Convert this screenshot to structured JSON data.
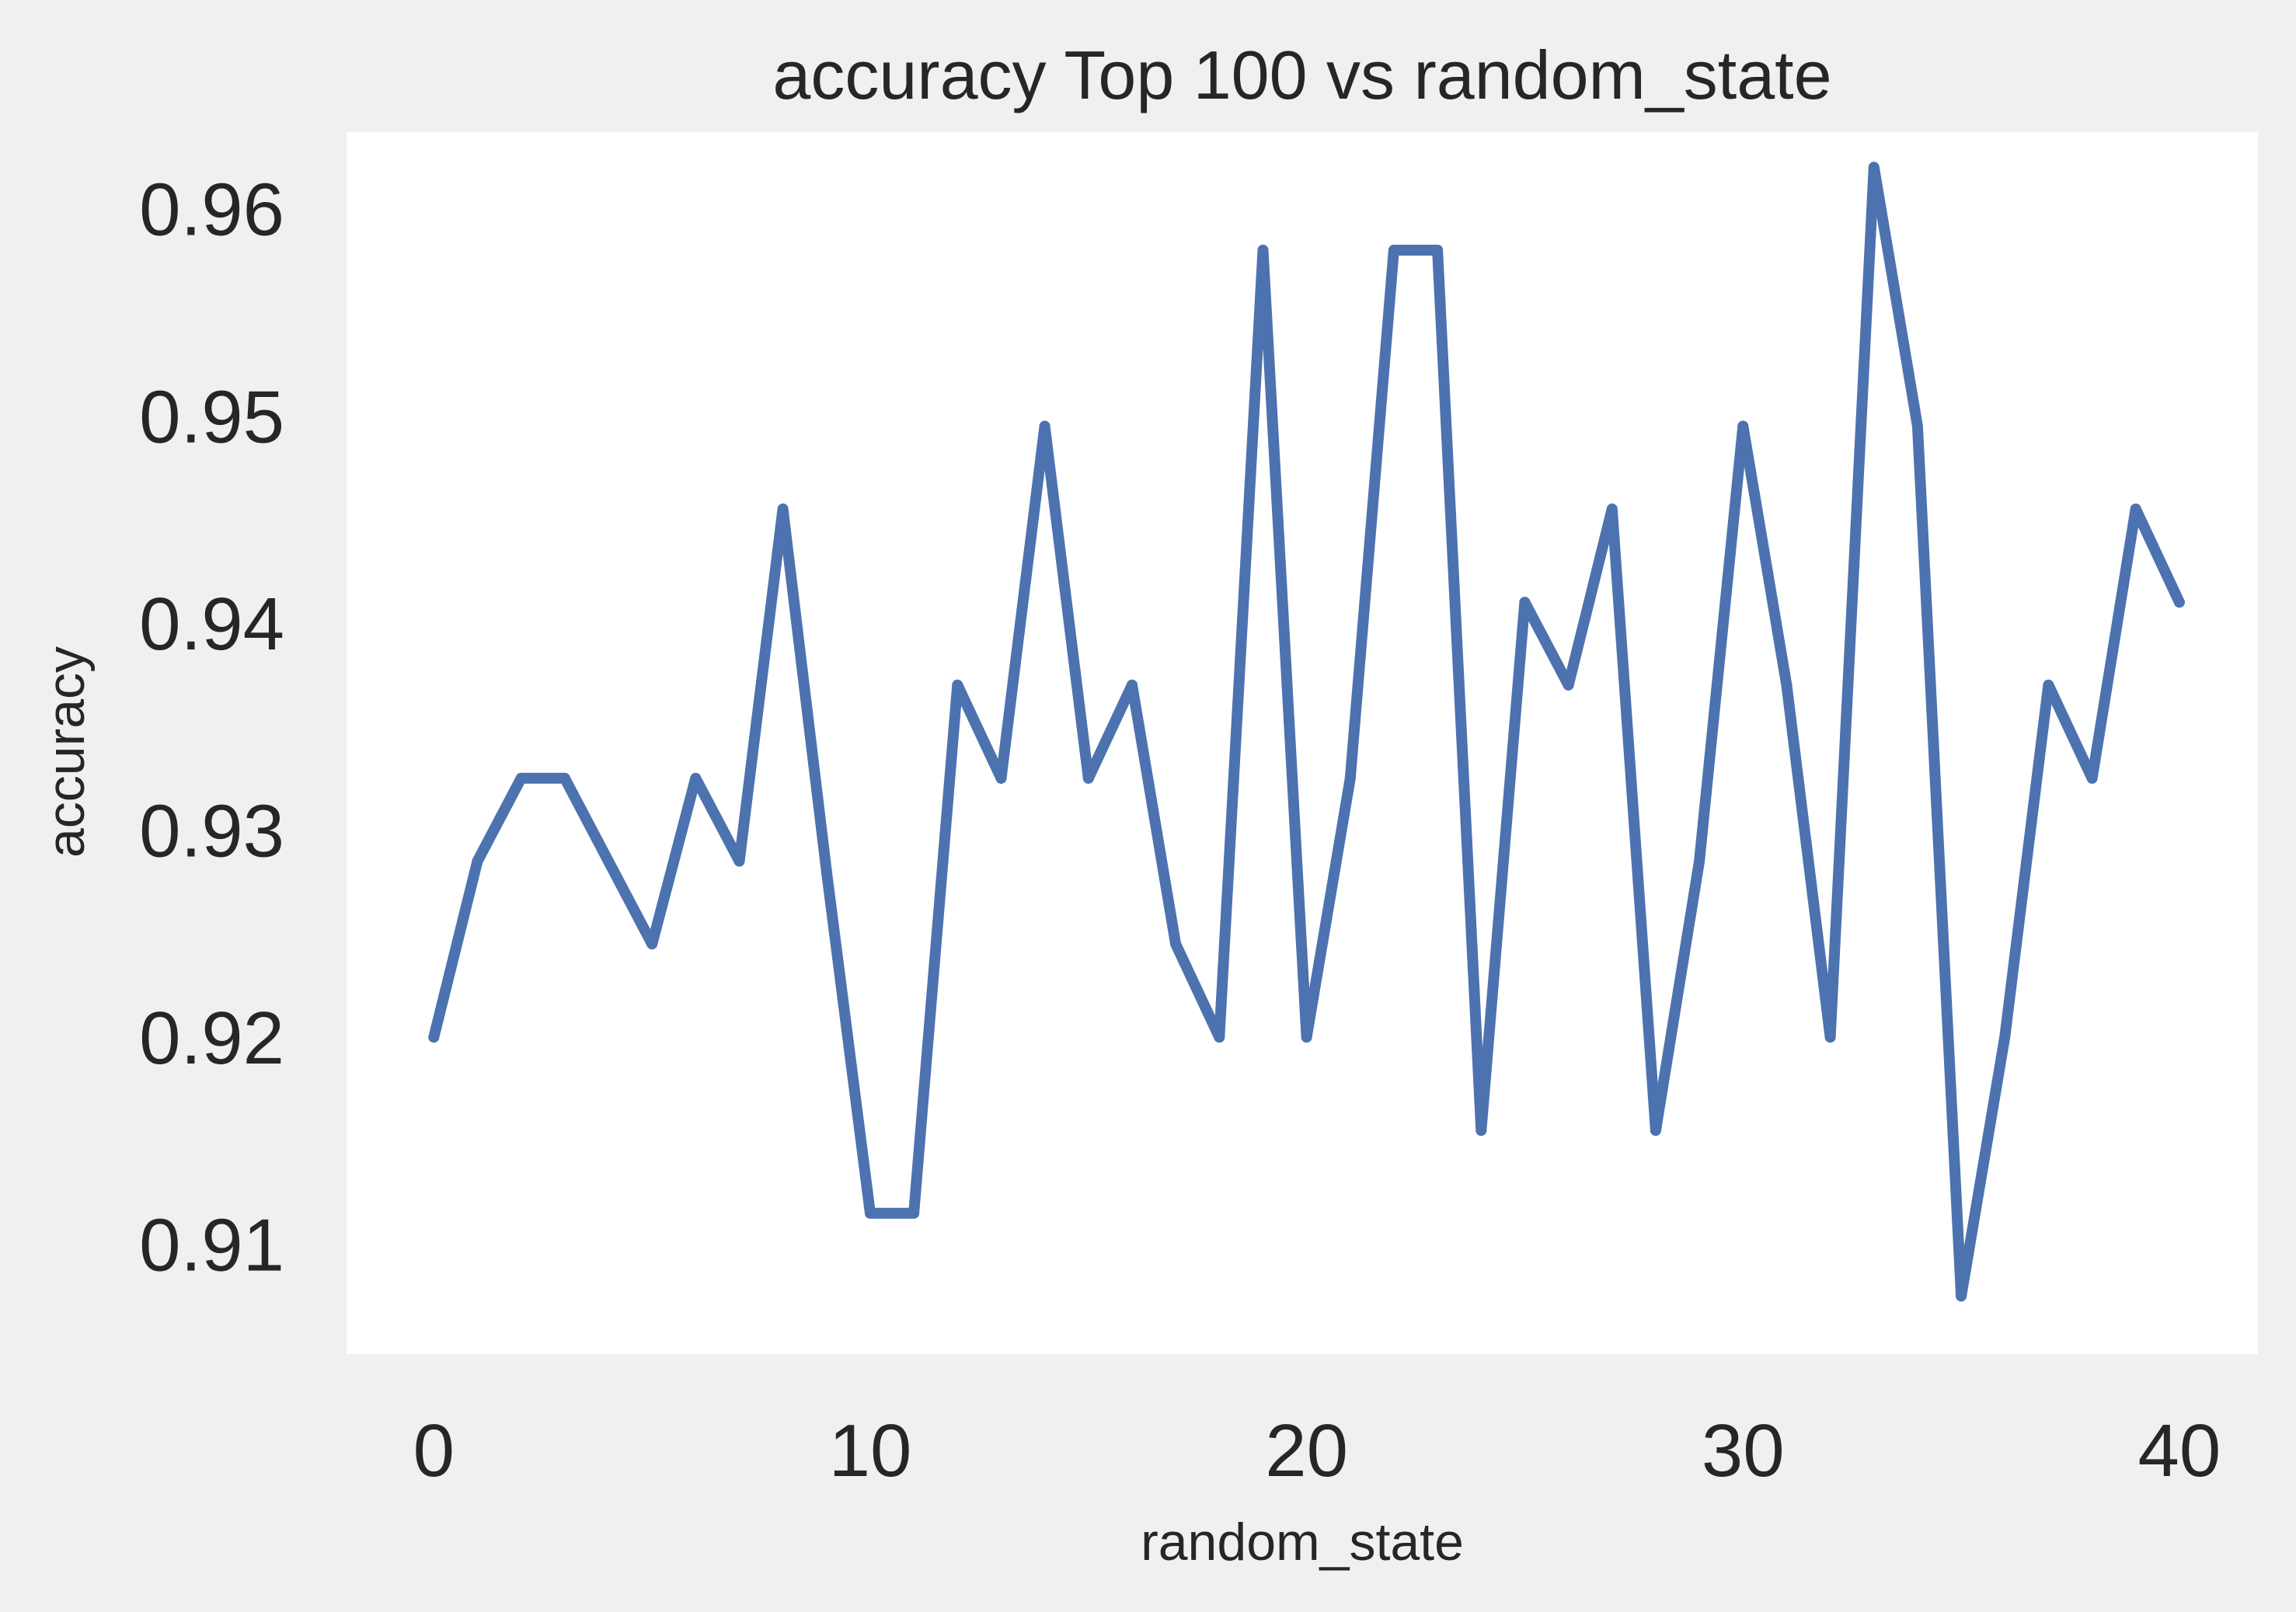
{
  "chart_data": {
    "type": "line",
    "title": "accuracy Top 100 vs random_state",
    "xlabel": "random_state",
    "ylabel": "accuracy",
    "xlim": [
      -2,
      41.8
    ],
    "ylim": [
      0.9047,
      0.9637
    ],
    "xticks": [
      0,
      10,
      20,
      30,
      40
    ],
    "yticks": [
      0.91,
      0.92,
      0.93,
      0.94,
      0.95,
      0.96
    ],
    "ytick_labels": [
      "0.91",
      "0.92",
      "0.93",
      "0.94",
      "0.95",
      "0.96"
    ],
    "grid": false,
    "colors": {
      "line": "#4c72b0",
      "plot_bg": "#ffffff",
      "figure_bg": "#f0f0f0"
    },
    "series": [
      {
        "x": [
          0,
          1,
          2,
          3,
          4,
          5,
          6,
          7,
          8,
          9,
          10,
          11,
          12,
          13,
          14,
          15,
          16,
          17,
          18,
          19,
          20,
          21,
          22,
          23,
          24,
          25,
          26,
          27,
          28,
          29,
          30,
          31,
          32,
          33,
          34,
          35,
          36,
          37,
          38,
          39,
          40
        ],
        "values": [
          0.92,
          0.9285,
          0.9325,
          0.9325,
          0.9285,
          0.9245,
          0.9325,
          0.9285,
          0.9455,
          0.928,
          0.9115,
          0.9115,
          0.937,
          0.9325,
          0.9495,
          0.9325,
          0.937,
          0.9245,
          0.92,
          0.958,
          0.92,
          0.9325,
          0.958,
          0.958,
          0.9155,
          0.941,
          0.937,
          0.9455,
          0.9155,
          0.9285,
          0.9495,
          0.937,
          0.92,
          0.962,
          0.9495,
          0.9075,
          0.92,
          0.937,
          0.9325,
          0.9455,
          0.941
        ]
      }
    ]
  }
}
